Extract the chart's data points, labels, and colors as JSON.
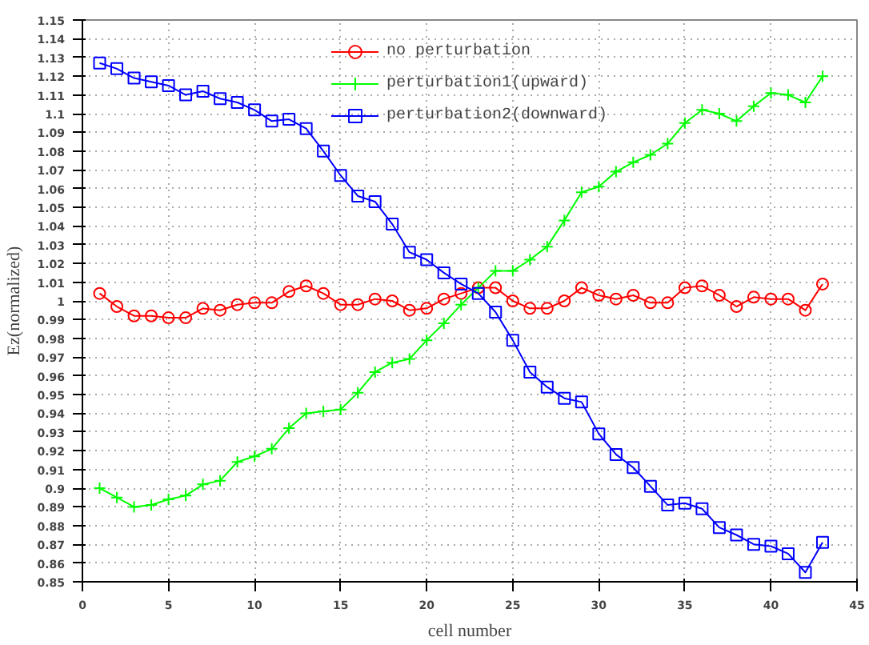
{
  "chart_data": {
    "type": "line",
    "xlabel": "cell number",
    "ylabel": "Ez(normalized)",
    "x": [
      1,
      2,
      3,
      4,
      5,
      6,
      7,
      8,
      9,
      10,
      11,
      12,
      13,
      14,
      15,
      16,
      17,
      18,
      19,
      20,
      21,
      22,
      23,
      24,
      25,
      26,
      27,
      28,
      29,
      30,
      31,
      32,
      33,
      34,
      35,
      36,
      37,
      38,
      39,
      40,
      41,
      42,
      43
    ],
    "series": [
      {
        "name": "no perturbation",
        "color": "#ff0000",
        "marker": "circle",
        "values": [
          1.004,
          0.997,
          0.992,
          0.992,
          0.991,
          0.991,
          0.996,
          0.995,
          0.998,
          0.999,
          0.999,
          1.005,
          1.008,
          1.004,
          0.998,
          0.998,
          1.001,
          1.0,
          0.995,
          0.996,
          1.001,
          1.004,
          1.007,
          1.007,
          1.0,
          0.996,
          0.996,
          1.0,
          1.007,
          1.003,
          1.001,
          1.003,
          0.999,
          0.999,
          1.007,
          1.008,
          1.003,
          0.997,
          1.002,
          1.001,
          1.001,
          0.995,
          1.009
        ]
      },
      {
        "name": "perturbation1(upward)",
        "color": "#00ff00",
        "marker": "cross",
        "values": [
          0.9,
          0.895,
          0.89,
          0.891,
          0.894,
          0.896,
          0.902,
          0.904,
          0.914,
          0.917,
          0.921,
          0.932,
          0.94,
          0.941,
          0.942,
          0.951,
          0.962,
          0.967,
          0.969,
          0.979,
          0.988,
          0.998,
          1.007,
          1.016,
          1.016,
          1.022,
          1.029,
          1.043,
          1.058,
          1.061,
          1.069,
          1.074,
          1.078,
          1.084,
          1.095,
          1.102,
          1.1,
          1.096,
          1.104,
          1.111,
          1.11,
          1.106,
          1.12
        ]
      },
      {
        "name": "perturbation2(downward)",
        "color": "#0000ff",
        "marker": "square",
        "values": [
          1.127,
          1.124,
          1.119,
          1.117,
          1.115,
          1.11,
          1.112,
          1.108,
          1.106,
          1.102,
          1.096,
          1.097,
          1.092,
          1.08,
          1.067,
          1.056,
          1.053,
          1.041,
          1.026,
          1.022,
          1.015,
          1.009,
          1.004,
          0.994,
          0.979,
          0.962,
          0.954,
          0.948,
          0.946,
          0.929,
          0.918,
          0.911,
          0.901,
          0.891,
          0.892,
          0.889,
          0.879,
          0.875,
          0.87,
          0.869,
          0.865,
          0.855,
          0.871
        ]
      }
    ],
    "xlim": [
      0,
      45
    ],
    "xticks": [
      0,
      5,
      10,
      15,
      20,
      25,
      30,
      35,
      40,
      45
    ],
    "ylim": [
      0.85,
      1.15
    ],
    "yticks": [
      0.85,
      0.86,
      0.87,
      0.88,
      0.89,
      0.9,
      0.91,
      0.92,
      0.93,
      0.94,
      0.95,
      0.96,
      0.97,
      0.98,
      0.99,
      1,
      1.01,
      1.02,
      1.03,
      1.04,
      1.05,
      1.06,
      1.07,
      1.08,
      1.09,
      1.1,
      1.11,
      1.12,
      1.13,
      1.14,
      1.15
    ],
    "grid": true,
    "legend": "top",
    "line_style": "solid"
  }
}
